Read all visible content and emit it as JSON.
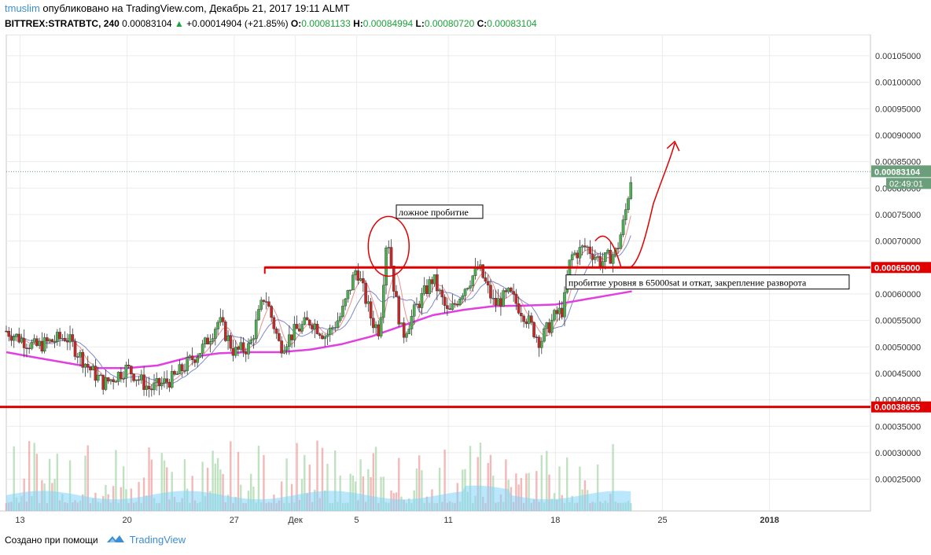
{
  "header": {
    "user": "tmuslim",
    "published": "опубликовано на TradingView.com, Декабрь 21, 2017 19:11 ALMT",
    "symbol": "BITTREX:STRATBTC, 240",
    "last": "0.00083104",
    "change": "+0.00014904 (+21.85%)",
    "o_label": "O:",
    "o_value": "0.00081133",
    "h_label": "H:",
    "h_value": "0.00084994",
    "l_label": "L:",
    "l_value": "0.00080720",
    "c_label": "C:",
    "c_value": "0.00083104"
  },
  "footer": {
    "created": "Создано при помощи",
    "brand": "TradingView"
  },
  "colors": {
    "up": "#4caf50",
    "down": "#c62828",
    "ma_long": "#e040e0",
    "ma_short1": "#e57373",
    "ma_short2": "#5c6bc0",
    "level": "#e00000",
    "annotation": "#e00000",
    "price_tag": "#6b9e7a",
    "volume_up": "#a5d6a7",
    "volume_down": "#ef9a9a",
    "volume_ma": "#81d4fa"
  },
  "chart_data": {
    "type": "candlestick",
    "y_ticks": [
      "0.00105000",
      "0.00100000",
      "0.00095000",
      "0.00090000",
      "0.00085000",
      "0.00080000",
      "0.00075000",
      "0.00070000",
      "0.00065000",
      "0.00060000",
      "0.00055000",
      "0.00050000",
      "0.00045000",
      "0.00040000",
      "0.00035000",
      "0.00030000",
      "0.00025000"
    ],
    "y_tick_values": [
      0.00105,
      0.001,
      0.00095,
      0.0009,
      0.00085,
      0.0008,
      0.00075,
      0.0007,
      0.00065,
      0.0006,
      0.00055,
      0.0005,
      0.00045,
      0.0004,
      0.00035,
      0.0003,
      0.00025
    ],
    "ylim": [
      0.00019,
      0.00109
    ],
    "x_ticks": [
      "13",
      "20",
      "27",
      "Дек",
      "5",
      "11",
      "18",
      "25",
      "2018"
    ],
    "x_tick_days": [
      13,
      20,
      27,
      31,
      35,
      41,
      48,
      55,
      62
    ],
    "xlim": [
      12.1,
      68.6
    ],
    "series_label": "BITTREX:STRATBTC, 240",
    "levels": [
      {
        "value": 0.00065,
        "label": "0.00065000",
        "from_day": 29
      },
      {
        "value": 0.00038655,
        "label": "0.00038655",
        "from_day": 12.1
      }
    ],
    "current_price": {
      "value": 0.00083104,
      "label": "0.00083104",
      "countdown": "02:49:01"
    },
    "anchors": [
      [
        12.1,
        0.00053
      ],
      [
        14,
        0.0005
      ],
      [
        16,
        0.00052
      ],
      [
        17.5,
        0.00046
      ],
      [
        18.5,
        0.00043
      ],
      [
        20,
        0.00046
      ],
      [
        21.5,
        0.00042
      ],
      [
        23,
        0.00044
      ],
      [
        25,
        0.0005
      ],
      [
        26,
        0.00055
      ],
      [
        27,
        0.00049
      ],
      [
        28,
        0.0005
      ],
      [
        29,
        0.0006
      ],
      [
        30,
        0.0005
      ],
      [
        31,
        0.00053
      ],
      [
        32,
        0.00055
      ],
      [
        33,
        0.00052
      ],
      [
        34,
        0.00056
      ],
      [
        35,
        0.00065
      ],
      [
        36,
        0.00055
      ],
      [
        36.5,
        0.00053
      ],
      [
        37,
        0.00072
      ],
      [
        37.5,
        0.0006
      ],
      [
        38,
        0.00052
      ],
      [
        39,
        0.00058
      ],
      [
        40,
        0.00063
      ],
      [
        41,
        0.00056
      ],
      [
        42,
        0.00061
      ],
      [
        43,
        0.00065
      ],
      [
        44,
        0.00058
      ],
      [
        45,
        0.0006
      ],
      [
        46,
        0.00056
      ],
      [
        47,
        0.00051
      ],
      [
        48,
        0.00056
      ],
      [
        48.5,
        0.00057
      ],
      [
        49,
        0.00067
      ],
      [
        50,
        0.00069
      ],
      [
        51,
        0.00066
      ],
      [
        52,
        0.00068
      ],
      [
        52.5,
        0.00074
      ],
      [
        53,
        0.00083
      ]
    ],
    "ma_long": [
      [
        12.1,
        0.00049
      ],
      [
        14,
        0.00048
      ],
      [
        16,
        0.00047
      ],
      [
        18,
        0.00046
      ],
      [
        20,
        0.00046
      ],
      [
        22,
        0.000465
      ],
      [
        24,
        0.00048
      ],
      [
        26,
        0.000488
      ],
      [
        28,
        0.00049
      ],
      [
        30,
        0.00049
      ],
      [
        32,
        0.000495
      ],
      [
        34,
        0.000505
      ],
      [
        36,
        0.00052
      ],
      [
        38,
        0.00054
      ],
      [
        40,
        0.00056
      ],
      [
        42,
        0.00057
      ],
      [
        44,
        0.000577
      ],
      [
        46,
        0.000578
      ],
      [
        48,
        0.00058
      ],
      [
        50,
        0.00059
      ],
      [
        52,
        0.0006
      ],
      [
        53,
        0.000605
      ]
    ],
    "volume": {
      "max": 0.00042,
      "base": 0.0002,
      "ma_level": 0.00022
    }
  },
  "annotations": {
    "false_breakout": "ложное пробитие",
    "breakout_text": "пробитие уровня в 65000sat и откат, закрепление разворота"
  }
}
